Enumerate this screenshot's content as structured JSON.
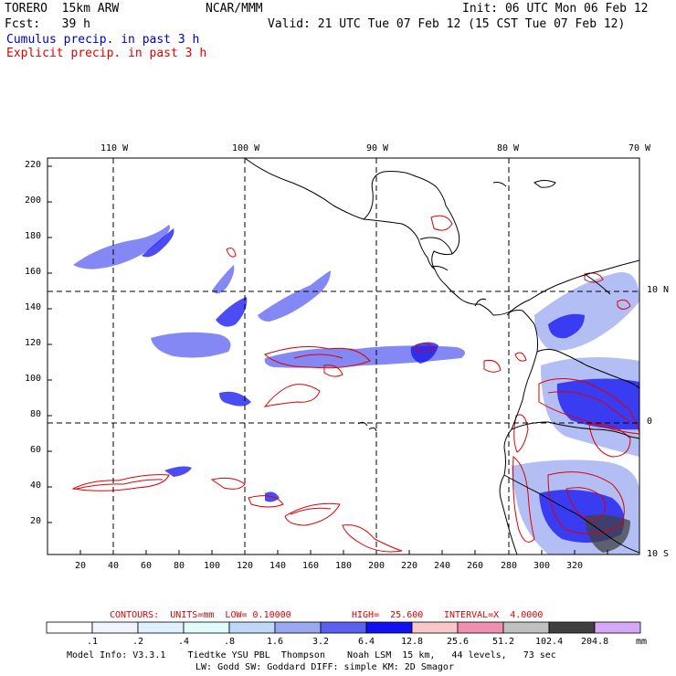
{
  "header": {
    "model": "TORERO  15km ARW",
    "org": "NCAR/MMM",
    "init": "Init: 06 UTC Mon 06 Feb 12",
    "fcst": "Fcst:   39 h",
    "valid": "Valid: 21 UTC Tue 07 Feb 12 (15 CST Tue 07 Feb 12)",
    "legend_cumulus": "Cumulus precip. in past 3 h",
    "legend_explicit": "Explicit precip. in past 3 h"
  },
  "colors": {
    "cumulus": "#0000c0",
    "explicit": "#e00000",
    "map_lines": "#000000"
  },
  "lon_labels": [
    "110 W",
    "100 W",
    "90 W",
    "80 W",
    "70 W"
  ],
  "lat_labels": [
    "10 N",
    "0",
    "10 S"
  ],
  "y_ticks": [
    "220",
    "200",
    "180",
    "160",
    "140",
    "120",
    "100",
    "80",
    "60",
    "40",
    "20"
  ],
  "x_ticks": [
    "20",
    "40",
    "60",
    "80",
    "100",
    "120",
    "140",
    "160",
    "180",
    "200",
    "220",
    "240",
    "260",
    "280",
    "300",
    "320"
  ],
  "contour_info": {
    "contours": "CONTOURS:  UNITS=mm  LOW= 0.10000",
    "high": "HIGH=  25.600",
    "interval": "INTERVAL=X  4.0000"
  },
  "colorbar": {
    "unit": "mm",
    "labels": [
      ".1",
      ".2",
      ".4",
      ".8",
      "1.6",
      "3.2",
      "6.4",
      "12.8",
      "25.6",
      "51.2",
      "102.4",
      "204.8"
    ],
    "colors": [
      "#ffffff",
      "#f0f4ff",
      "#e0f0ff",
      "#e0fcfc",
      "#c0d8f8",
      "#9aa8f0",
      "#5a60f0",
      "#1010f0",
      "#f8c8c8",
      "#f090b0",
      "#c0c0c0",
      "#404040",
      "#d8a8f8"
    ]
  },
  "footer": {
    "line1": "Model Info: V3.3.1    Tiedtke YSU PBL  Thompson    Noah LSM  15 km,   44 levels,   73 sec",
    "line2": "LW: Godd SW: Goddard DIFF: simple KM: 2D Smagor"
  }
}
